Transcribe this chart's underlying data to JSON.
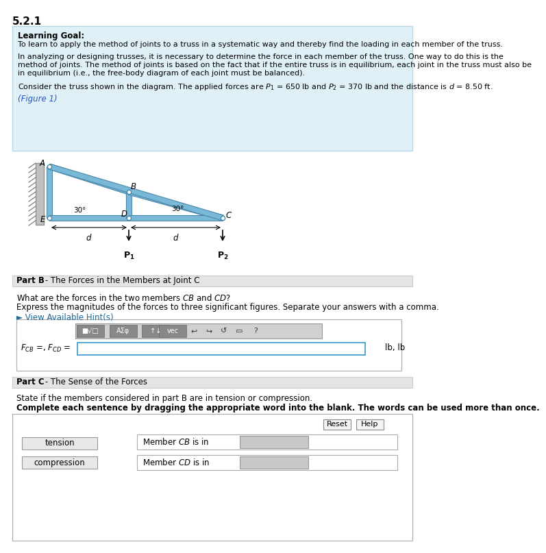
{
  "title": "5.2.1",
  "bg_color": "#ffffff",
  "panel_bg": "#dff0f7",
  "panel_border": "#b8d8e8",
  "learning_goal_title": "Learning Goal:",
  "learning_goal_text": "To learn to apply the method of joints to a truss in a systematic way and thereby find the loading in each member of the truss.",
  "para1_line1": "In analyzing or designing trusses, it is necessary to determine the force in each member of the truss. One way to do this is the",
  "para1_line2": "method of joints. The method of joints is based on the fact that if the entire truss is in equilibrium, each joint in the truss must also be",
  "para1_line3": "in equilibrium (i.e., the free-body diagram of each joint must be balanced).",
  "para2": "Consider the truss shown in the diagram. The applied forces are $P_1$ = 650 lb and $P_2$ = 370 lb and the distance is $d$ = 8.50 ft.",
  "figure_link": "(Figure 1)",
  "truss_color": "#7ab8d8",
  "truss_outline": "#4a88aa",
  "wall_color": "#b8b8b8",
  "part_b_title": "Part B",
  "part_b_sub": " - The Forces in the Members at Joint C",
  "part_b_q1": "What are the forces in the two members $CB$ and $CD$?",
  "part_b_q2": "Express the magnitudes of the forces to three significant figures. Separate your answers with a comma.",
  "hint_text": "► View Available Hint(s)",
  "unit_label": "lb, lb",
  "part_c_title": "Part C",
  "part_c_sub": " - The Sense of the Forces",
  "part_c_q1": "State if the members considered in part B are in tension or compression.",
  "part_c_q2": "Complete each sentence by dragging the appropriate word into the blank. The words can be used more than once.",
  "tension_word": "tension",
  "compression_word": "compression",
  "member_cb": "Member $CB$ is in",
  "member_cd": "Member $CD$ is in",
  "reset_btn": "Reset",
  "help_btn": "Help"
}
